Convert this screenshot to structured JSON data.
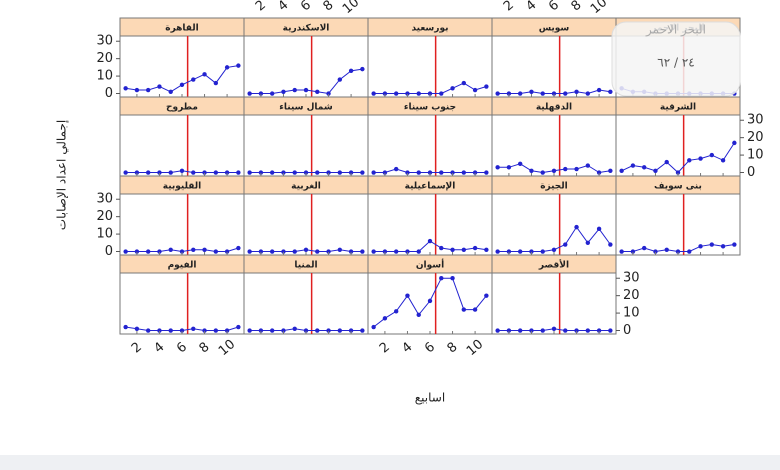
{
  "chart_data": {
    "type": "line",
    "x_label": "اسابيع",
    "y_label": "إجمالي اعداد الإصابات",
    "x": [
      1,
      2,
      3,
      4,
      5,
      6,
      7,
      8,
      9,
      10,
      11
    ],
    "xlim": [
      0.5,
      11.5
    ],
    "xticks": [
      2,
      4,
      6,
      8,
      10
    ],
    "ylim": [
      -2,
      33
    ],
    "yticks": [
      0,
      10,
      20,
      30
    ],
    "vline_x": 6.5,
    "vline_color": "#e02020",
    "color": "#2323d0",
    "strip_color": "#fcd9b6",
    "series": [
      {
        "name": "القاهرة",
        "values": [
          3,
          2,
          2,
          4,
          1,
          5,
          8,
          11,
          6,
          15,
          16
        ]
      },
      {
        "name": "الاسكندرية",
        "values": [
          0,
          0,
          0,
          1,
          2,
          2,
          1,
          0,
          8,
          13,
          14
        ]
      },
      {
        "name": "بورسعيد",
        "values": [
          0,
          0,
          0,
          0,
          0,
          0,
          0,
          3,
          6,
          2,
          4
        ]
      },
      {
        "name": "سويس",
        "values": [
          0,
          0,
          0,
          1,
          0,
          0,
          0,
          1,
          0,
          2,
          1
        ]
      },
      {
        "name": "البحر الاحمر",
        "values": [
          3,
          1,
          1,
          0,
          0,
          0,
          0,
          0,
          0,
          0,
          0
        ]
      },
      {
        "name": "مطروح",
        "values": [
          0,
          0,
          0,
          0,
          0,
          1,
          0,
          0,
          0,
          0,
          0
        ]
      },
      {
        "name": "شمال سيناء",
        "values": [
          0,
          0,
          0,
          0,
          0,
          0,
          0,
          0,
          0,
          0,
          0
        ]
      },
      {
        "name": "جنوب سيناء",
        "values": [
          0,
          0,
          2,
          0,
          0,
          0,
          0,
          0,
          0,
          0,
          0
        ]
      },
      {
        "name": "الدقهلية",
        "values": [
          3,
          3,
          5,
          1,
          0,
          1,
          2,
          2,
          4,
          0,
          1
        ]
      },
      {
        "name": "الشرقية",
        "values": [
          1,
          4,
          3,
          1,
          6,
          0,
          7,
          8,
          10,
          7,
          17
        ]
      },
      {
        "name": "القليوبية",
        "values": [
          0,
          0,
          0,
          0,
          1,
          0,
          1,
          1,
          0,
          0,
          2
        ]
      },
      {
        "name": "الغربية",
        "values": [
          0,
          0,
          0,
          0,
          0,
          1,
          0,
          0,
          1,
          0,
          0
        ]
      },
      {
        "name": "الإسماعيلية",
        "values": [
          0,
          0,
          0,
          0,
          0,
          6,
          2,
          1,
          1,
          2,
          1
        ]
      },
      {
        "name": "الجيزة",
        "values": [
          0,
          0,
          0,
          0,
          0,
          1,
          4,
          14,
          5,
          13,
          4
        ]
      },
      {
        "name": "بنى سويف",
        "values": [
          0,
          0,
          2,
          0,
          1,
          0,
          0,
          3,
          4,
          3,
          4
        ]
      },
      {
        "name": "الفيوم",
        "values": [
          2,
          1,
          0,
          0,
          0,
          0,
          1,
          0,
          0,
          0,
          2
        ]
      },
      {
        "name": "المنيا",
        "values": [
          0,
          0,
          0,
          0,
          1,
          0,
          0,
          0,
          0,
          0,
          0
        ]
      },
      {
        "name": "أسوان",
        "values": [
          2,
          7,
          11,
          20,
          9,
          17,
          30,
          30,
          12,
          12,
          20
        ]
      },
      {
        "name": "الأقصر",
        "values": [
          0,
          0,
          0,
          0,
          0,
          1,
          0,
          0,
          0,
          0,
          0
        ]
      }
    ]
  },
  "overlay": {
    "page_counter": "٢٤ / ٦٢"
  }
}
